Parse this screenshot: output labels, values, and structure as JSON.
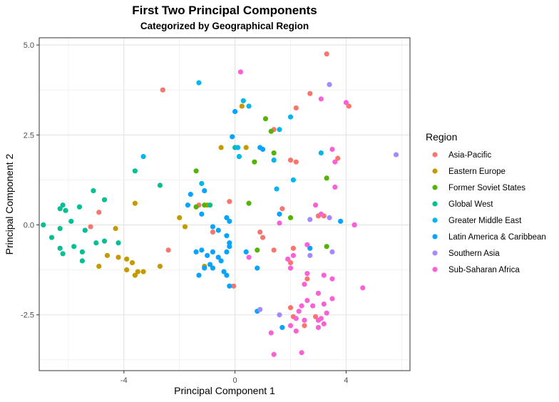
{
  "chart_data": {
    "type": "scatter",
    "title": "First Two Principal Components",
    "subtitle": "Categorized by Geographical Region",
    "xlabel": "Principal Component 1",
    "ylabel": "Principal Component 2",
    "xlim": [
      -7.05,
      6.3
    ],
    "ylim": [
      -4.05,
      5.2
    ],
    "xticks": [
      -4,
      0,
      4
    ],
    "xtick_labels": [
      "-4",
      "0",
      "4"
    ],
    "yticks": [
      -2.5,
      0.0,
      2.5,
      5.0
    ],
    "ytick_labels": [
      "-2.5",
      "0.0",
      "2.5",
      "5.0"
    ],
    "grid": true,
    "legend_position": "right",
    "legend_title": "Region",
    "series": [
      {
        "name": "Asia-Pacific",
        "color": "#F8766D",
        "points": [
          [
            3.3,
            4.75
          ],
          [
            -2.6,
            3.75
          ],
          [
            2.7,
            3.65
          ],
          [
            4.1,
            3.3
          ],
          [
            2.2,
            3.25
          ],
          [
            1.4,
            2.65
          ],
          [
            2.0,
            1.8
          ],
          [
            2.2,
            1.75
          ],
          [
            3.7,
            1.85
          ],
          [
            -0.2,
            0.65
          ],
          [
            -1.3,
            0.55
          ],
          [
            -4.9,
            0.35
          ],
          [
            -5.2,
            -0.05
          ],
          [
            -0.8,
            -0.2
          ],
          [
            0.9,
            -0.2
          ],
          [
            1.4,
            -0.7
          ],
          [
            1.7,
            0.45
          ],
          [
            1.0,
            -0.35
          ],
          [
            -2.4,
            -0.7
          ],
          [
            -0.05,
            -1.7
          ],
          [
            3.0,
            0.25
          ],
          [
            3.2,
            0.25
          ],
          [
            2.1,
            -0.65
          ],
          [
            2.0,
            -1.05
          ],
          [
            2.6,
            -1.5
          ],
          [
            2.0,
            -2.3
          ],
          [
            2.1,
            -2.55
          ],
          [
            2.5,
            -2.8
          ],
          [
            2.9,
            -2.55
          ]
        ]
      },
      {
        "name": "Eastern Europe",
        "color": "#C49A00",
        "points": [
          [
            0.25,
            3.3
          ],
          [
            -0.5,
            2.15
          ],
          [
            0.4,
            2.15
          ],
          [
            -3.6,
            0.6
          ],
          [
            -2.0,
            0.2
          ],
          [
            -1.8,
            -0.05
          ],
          [
            -1.0,
            0.55
          ],
          [
            -4.3,
            -0.1
          ],
          [
            -4.6,
            -0.85
          ],
          [
            -4.2,
            -0.9
          ],
          [
            -3.9,
            -0.95
          ],
          [
            -3.7,
            -1.05
          ],
          [
            -2.7,
            -1.15
          ],
          [
            -4.9,
            -1.15
          ],
          [
            -3.9,
            -1.25
          ],
          [
            -3.3,
            -1.3
          ],
          [
            -3.5,
            -1.3
          ],
          [
            -3.6,
            -1.4
          ],
          [
            -1.1,
            -1.15
          ]
        ]
      },
      {
        "name": "Former Soviet States",
        "color": "#53B400",
        "points": [
          [
            1.1,
            2.95
          ],
          [
            1.3,
            2.6
          ],
          [
            1.4,
            2.0
          ],
          [
            -1.4,
            1.5
          ],
          [
            0.5,
            0.6
          ],
          [
            -1.1,
            0.55
          ],
          [
            -1.4,
            0.5
          ],
          [
            2.0,
            0.2
          ],
          [
            3.3,
            1.3
          ],
          [
            3.3,
            -0.6
          ],
          [
            0.8,
            -0.7
          ],
          [
            0.7,
            1.75
          ]
        ]
      },
      {
        "name": "Global West",
        "color": "#00C094",
        "points": [
          [
            -5.1,
            0.95
          ],
          [
            -4.7,
            0.7
          ],
          [
            -6.2,
            0.55
          ],
          [
            -6.3,
            0.45
          ],
          [
            -5.6,
            0.5
          ],
          [
            -6.1,
            0.4
          ],
          [
            -5.9,
            0.1
          ],
          [
            -6.9,
            0.0
          ],
          [
            -6.3,
            -0.1
          ],
          [
            -5.4,
            -0.15
          ],
          [
            -6.6,
            -0.35
          ],
          [
            -5.0,
            -0.5
          ],
          [
            -4.7,
            -0.45
          ],
          [
            -4.2,
            -0.5
          ],
          [
            -6.3,
            -0.65
          ],
          [
            -5.8,
            -0.6
          ],
          [
            -5.5,
            -0.75
          ],
          [
            -6.2,
            -0.8
          ],
          [
            -5.5,
            -1.0
          ],
          [
            -3.6,
            1.5
          ],
          [
            -2.7,
            1.1
          ],
          [
            -0.9,
            0.55
          ],
          [
            0.0,
            2.15
          ]
        ]
      },
      {
        "name": "Greater Middle East",
        "color": "#00B6EB",
        "points": [
          [
            -1.3,
            3.95
          ],
          [
            0.3,
            3.45
          ],
          [
            0.5,
            3.3
          ],
          [
            2.0,
            3.0
          ],
          [
            1.6,
            2.65
          ],
          [
            0.1,
            2.15
          ],
          [
            0.15,
            1.9
          ],
          [
            -3.3,
            1.9
          ],
          [
            3.1,
            2.0
          ],
          [
            1.4,
            1.8
          ],
          [
            2.1,
            1.25
          ],
          [
            -1.2,
            1.15
          ],
          [
            1.5,
            1.0
          ]
        ]
      },
      {
        "name": "Latin America & Caribbean",
        "color": "#06A4FF",
        "points": [
          [
            0.0,
            3.15
          ],
          [
            -0.1,
            2.45
          ],
          [
            0.9,
            2.15
          ],
          [
            1.0,
            2.1
          ],
          [
            -1.6,
            0.85
          ],
          [
            -1.1,
            0.95
          ],
          [
            -1.7,
            0.55
          ],
          [
            -1.2,
            0.3
          ],
          [
            -0.3,
            0.2
          ],
          [
            -0.2,
            0.1
          ],
          [
            1.6,
            0.3
          ],
          [
            -0.8,
            -0.05
          ],
          [
            -0.6,
            -0.15
          ],
          [
            -1.4,
            -0.75
          ],
          [
            -1.2,
            -0.7
          ],
          [
            -0.8,
            -0.75
          ],
          [
            -0.3,
            -0.3
          ],
          [
            -0.2,
            -0.5
          ],
          [
            -0.2,
            -0.6
          ],
          [
            -0.3,
            -0.75
          ],
          [
            -1.0,
            -0.85
          ],
          [
            -0.6,
            -0.9
          ],
          [
            0.4,
            -0.75
          ],
          [
            -0.5,
            -1.0
          ],
          [
            -0.9,
            -1.1
          ],
          [
            -1.1,
            -1.2
          ],
          [
            -0.8,
            -1.2
          ],
          [
            -0.4,
            -1.3
          ],
          [
            -0.3,
            -1.4
          ],
          [
            -1.3,
            -1.4
          ],
          [
            0.8,
            -1.2
          ],
          [
            -0.2,
            -1.7
          ],
          [
            0.8,
            -2.4
          ],
          [
            1.7,
            -2.85
          ],
          [
            3.8,
            0.1
          ],
          [
            2.7,
            -0.65
          ]
        ]
      },
      {
        "name": "Southern Asia",
        "color": "#A58AFF",
        "points": [
          [
            3.4,
            3.9
          ],
          [
            5.8,
            1.95
          ],
          [
            2.7,
            0.15
          ],
          [
            3.4,
            0.2
          ],
          [
            2.7,
            -0.85
          ],
          [
            3.5,
            -0.75
          ],
          [
            1.6,
            -2.5
          ],
          [
            0.9,
            -2.35
          ]
        ]
      },
      {
        "name": "Sub-Saharan Africa",
        "color": "#FB61D7",
        "points": [
          [
            0.2,
            4.25
          ],
          [
            3.1,
            3.5
          ],
          [
            4.0,
            3.4
          ],
          [
            3.5,
            2.1
          ],
          [
            3.6,
            1.75
          ],
          [
            3.6,
            1.05
          ],
          [
            2.9,
            0.55
          ],
          [
            3.1,
            0.3
          ],
          [
            4.3,
            0.0
          ],
          [
            1.6,
            0.05
          ],
          [
            0.5,
            -0.9
          ],
          [
            2.6,
            -0.55
          ],
          [
            2.1,
            -0.85
          ],
          [
            1.9,
            -0.95
          ],
          [
            2.0,
            -1.2
          ],
          [
            2.6,
            -1.35
          ],
          [
            3.2,
            -1.4
          ],
          [
            2.5,
            -1.65
          ],
          [
            3.5,
            -1.5
          ],
          [
            4.6,
            -1.75
          ],
          [
            3.0,
            -1.9
          ],
          [
            2.6,
            -2.1
          ],
          [
            3.5,
            -2.05
          ],
          [
            2.8,
            -2.25
          ],
          [
            3.2,
            -2.2
          ],
          [
            2.4,
            -2.25
          ],
          [
            3.3,
            -2.45
          ],
          [
            3.0,
            -2.65
          ],
          [
            2.3,
            -2.4
          ],
          [
            3.1,
            -2.6
          ],
          [
            3.2,
            -2.75
          ],
          [
            2.2,
            -2.6
          ],
          [
            2.5,
            -2.65
          ],
          [
            2.0,
            -2.8
          ],
          [
            2.2,
            -2.95
          ],
          [
            1.3,
            -3.0
          ],
          [
            3.0,
            -2.85
          ],
          [
            2.4,
            -3.55
          ],
          [
            1.4,
            -3.6
          ],
          [
            4.3,
            -0.0
          ]
        ]
      }
    ]
  }
}
